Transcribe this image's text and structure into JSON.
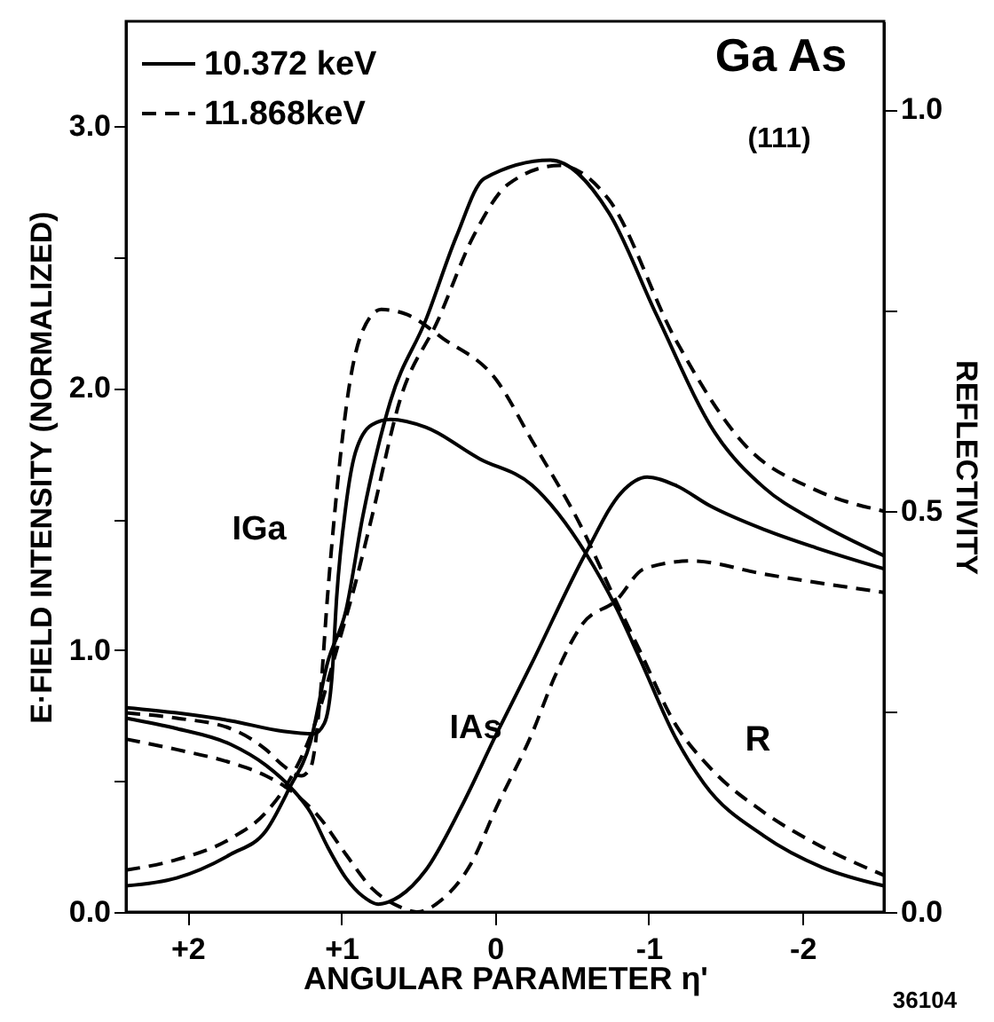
{
  "chart_data": {
    "type": "line",
    "xlabel": "ANGULAR  PARAMETER η'",
    "ylabel": "E·FIELD INTENSITY (NORMALIZED)",
    "y2label": "REFLECTIVITY",
    "xlim": [
      2.4,
      -2.53
    ],
    "ylim": [
      0,
      3.4
    ],
    "y2lim": [
      0,
      1.11
    ],
    "xticks": [
      {
        "value": 2,
        "label": "+2"
      },
      {
        "value": 1,
        "label": "+1"
      },
      {
        "value": 0,
        "label": "0"
      },
      {
        "value": -1,
        "label": "-1"
      },
      {
        "value": -2,
        "label": "-2"
      }
    ],
    "yticks": [
      {
        "value": 0,
        "label": "0.0"
      },
      {
        "value": 0.5,
        "label": null
      },
      {
        "value": 1,
        "label": "1.0"
      },
      {
        "value": 1.5,
        "label": null
      },
      {
        "value": 2,
        "label": "2.0"
      },
      {
        "value": 2.5,
        "label": null
      },
      {
        "value": 3,
        "label": "3.0"
      }
    ],
    "y2ticks": [
      {
        "value": 0,
        "label": "0.0"
      },
      {
        "value": 0.25,
        "label": null
      },
      {
        "value": 0.5,
        "label": "0.5"
      },
      {
        "value": 0.75,
        "label": null
      },
      {
        "value": 1,
        "label": "1.0"
      }
    ],
    "grid": false,
    "legend": "top left",
    "annotations": [
      "Ga As",
      "(111)",
      "IGa",
      "IAs",
      "R",
      "36104"
    ],
    "series": [
      {
        "name": "10.372 keV",
        "color": "#000000",
        "line_style": "solid",
        "x": [
          2.4,
          2.07,
          1.72,
          1.49,
          1.34,
          1.2,
          1.09,
          0.97,
          0.86,
          0.68,
          0.45,
          0.25,
          0.07,
          -0.36,
          -0.74,
          -1.05,
          -1.43,
          -1.75,
          -2.09,
          -2.53
        ],
        "values": [
          0.1,
          0.13,
          0.22,
          0.31,
          0.47,
          0.65,
          0.95,
          1.15,
          1.51,
          1.95,
          2.26,
          2.58,
          2.8,
          2.87,
          2.67,
          2.28,
          1.83,
          1.62,
          1.49,
          1.36
        ]
      },
      {
        "name": "11.868keV",
        "color": "#000000",
        "line_style": "dashed",
        "x": [
          2.4,
          2.07,
          1.72,
          1.49,
          1.34,
          1.17,
          1.03,
          0.91,
          0.8,
          0.62,
          0.37,
          0.14,
          -0.09,
          -0.42,
          -0.74,
          -1.17,
          -1.63,
          -2.09,
          -2.53
        ],
        "values": [
          0.16,
          0.2,
          0.28,
          0.38,
          0.5,
          0.72,
          1.0,
          1.25,
          1.51,
          1.95,
          2.26,
          2.58,
          2.78,
          2.85,
          2.72,
          2.19,
          1.78,
          1.61,
          1.53
        ]
      },
      {
        "color": "#000000",
        "line_style": "solid",
        "x": [
          2.4,
          2.07,
          1.72,
          1.38,
          1.18,
          1.11,
          1.06,
          1.03,
          0.97,
          0.91,
          0.8,
          0.68,
          0.45,
          0.1,
          -0.24,
          -0.59,
          -0.79,
          -0.94,
          -1.17,
          -1.36,
          -1.75,
          -2.13,
          -2.53
        ],
        "values": [
          0.78,
          0.76,
          0.73,
          0.69,
          0.68,
          0.72,
          0.9,
          1.2,
          1.55,
          1.75,
          1.86,
          1.88,
          1.85,
          1.73,
          1.63,
          1.37,
          1.16,
          0.97,
          0.67,
          0.49,
          0.29,
          0.17,
          0.1
        ]
      },
      {
        "color": "#000000",
        "line_style": "dashed",
        "x": [
          2.4,
          2.07,
          1.72,
          1.49,
          1.38,
          1.26,
          1.2,
          1.14,
          1.09,
          1.03,
          0.95,
          0.86,
          0.74,
          0.57,
          0.34,
          -0.01,
          -0.24,
          -0.57,
          -0.76,
          -0.94,
          -1.17,
          -1.4,
          -1.75,
          -2.09,
          -2.53
        ],
        "values": [
          0.76,
          0.74,
          0.7,
          0.62,
          0.56,
          0.52,
          0.55,
          0.8,
          1.2,
          1.6,
          2.0,
          2.22,
          2.3,
          2.28,
          2.19,
          2.03,
          1.8,
          1.46,
          1.22,
          1.0,
          0.72,
          0.55,
          0.38,
          0.26,
          0.14
        ]
      },
      {
        "color": "#000000",
        "line_style": "solid",
        "x": [
          2.4,
          2.07,
          1.72,
          1.49,
          1.32,
          1.2,
          1.09,
          0.97,
          0.86,
          0.76,
          0.62,
          0.45,
          0.22,
          -0.01,
          -0.24,
          -0.59,
          -0.82,
          -0.99,
          -1.17,
          -1.4,
          -1.75,
          -2.09,
          -2.53
        ],
        "values": [
          0.74,
          0.7,
          0.64,
          0.56,
          0.47,
          0.38,
          0.25,
          0.13,
          0.06,
          0.03,
          0.06,
          0.16,
          0.4,
          0.68,
          0.95,
          1.37,
          1.6,
          1.66,
          1.63,
          1.55,
          1.46,
          1.39,
          1.31
        ]
      },
      {
        "color": "#000000",
        "line_style": "dashed",
        "x": [
          2.4,
          2.07,
          1.72,
          1.49,
          1.32,
          1.14,
          0.97,
          0.8,
          0.62,
          0.51,
          0.34,
          0.16,
          -0.01,
          -0.24,
          -0.39,
          -0.57,
          -0.79,
          -0.97,
          -1.28,
          -1.75,
          -2.53
        ],
        "values": [
          0.66,
          0.62,
          0.57,
          0.52,
          0.46,
          0.36,
          0.22,
          0.09,
          0.02,
          0.0,
          0.05,
          0.18,
          0.4,
          0.68,
          0.9,
          1.1,
          1.19,
          1.31,
          1.34,
          1.29,
          1.22
        ]
      }
    ]
  }
}
